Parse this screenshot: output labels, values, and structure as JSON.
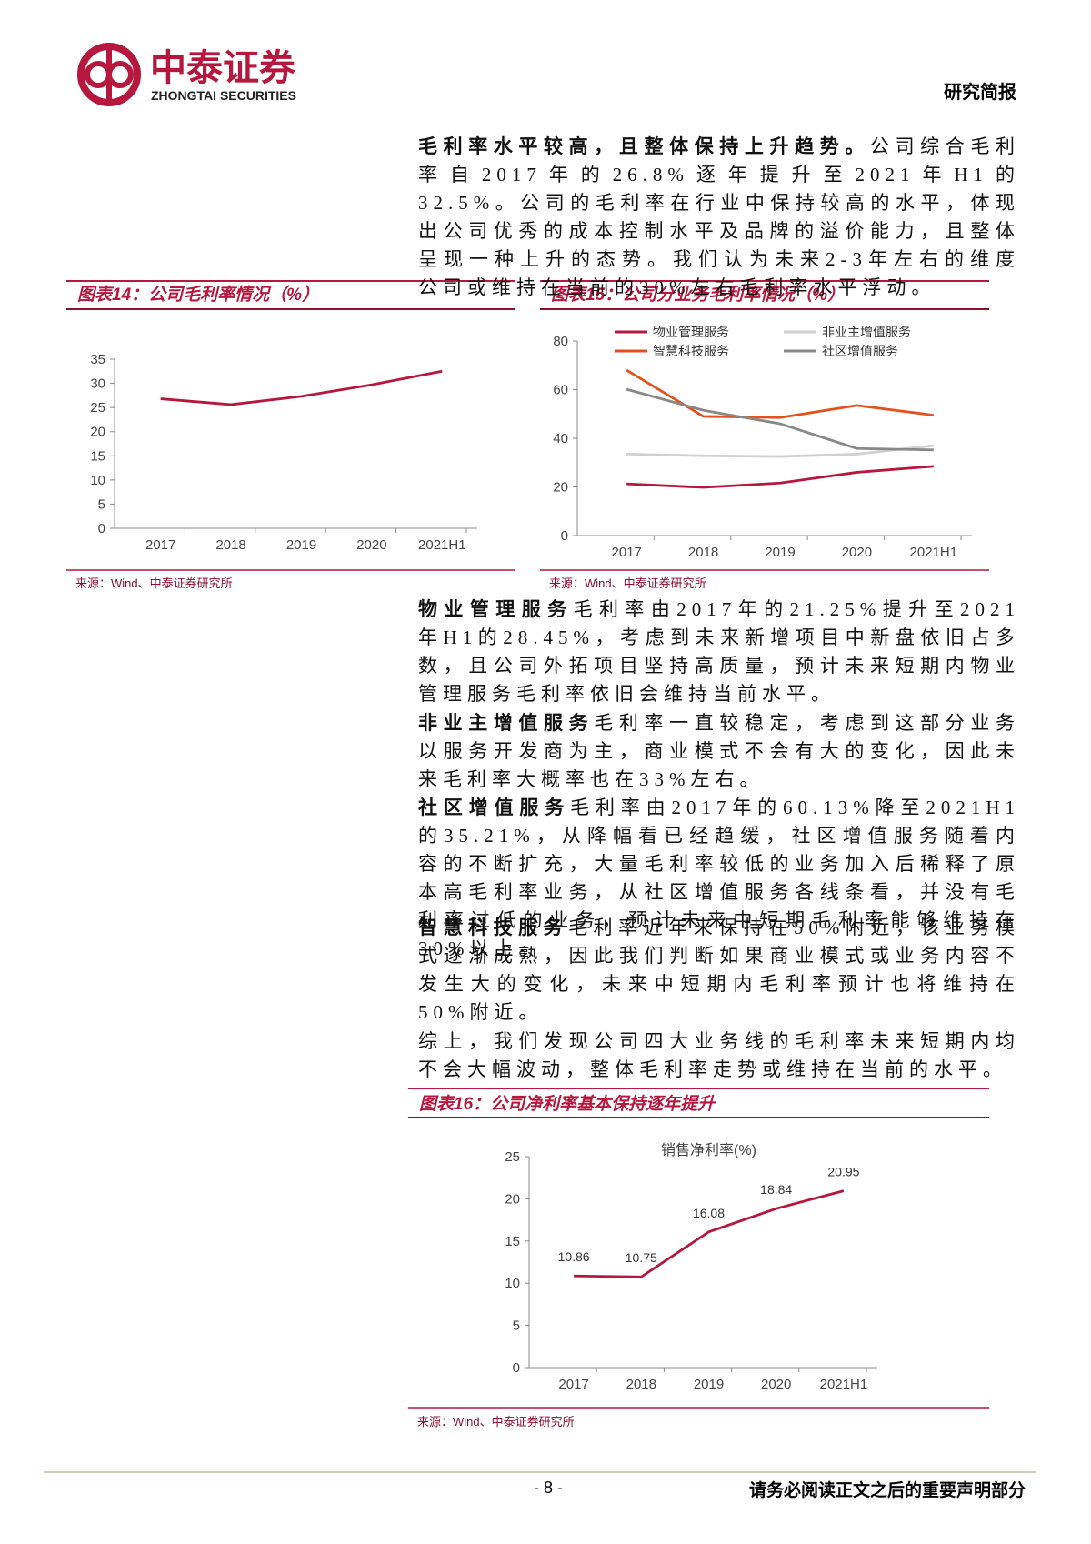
{
  "header": {
    "brand": "中泰证券",
    "brand_en": "ZHONGTAI SECURITIES",
    "report_type": "研究简报"
  },
  "paragraphs": [
    {
      "lead": "毛利率水平较高，且整体保持上升趋势。",
      "text": "公司综合毛利率自2017年的26.8%逐年提升至2021年H1的32.5%。公司的毛利率在行业中保持较高的水平，体现出公司优秀的成本控制水平及品牌的溢价能力，且整体呈现一种上升的态势。我们认为未来2-3年左右的维度公司或维持在当前的30%左右毛利率水平浮动。"
    },
    {
      "lead": "物业管理服务",
      "text": "毛利率由2017年的21.25%提升至2021年H1的28.45%，考虑到未来新增项目中新盘依旧占多数，且公司外拓项目坚持高质量，预计未来短期内物业管理服务毛利率依旧会维持当前水平。"
    },
    {
      "lead": "非业主增值服务",
      "text": "毛利率一直较稳定，考虑到这部分业务以服务开发商为主，商业模式不会有大的变化，因此未来毛利率大概率也在33%左右。"
    },
    {
      "lead": "社区增值服务",
      "text": "毛利率由2017年的60.13%降至2021H1的35.21%，从降幅看已经趋缓，社区增值服务随着内容的不断扩充，大量毛利率较低的业务加入后稀释了原本高毛利率业务，从社区增值服务各线条看，并没有毛利率过低的业务，预计未来中短期毛利率能够维持在30%以上。"
    },
    {
      "lead": "智慧科技服务",
      "text": "毛利率近年来保持在50%附近，该业务模式逐渐成熟，因此我们判断如果商业模式或业务内容不发生大的变化，未来中短期内毛利率预计也将维持在50%附近。"
    },
    {
      "text": "综上，我们发现公司四大业务线的毛利率未来短期内均不会大幅波动，整体毛利率走势或维持在当前的水平。"
    }
  ],
  "figures": [
    {
      "title": "图表14：公司毛利率情况（%）",
      "source": "来源：Wind、中泰证券研究所"
    },
    {
      "title": "图表15：公司分业务毛利率情况（%）",
      "source": "来源：Wind、中泰证券研究所"
    },
    {
      "title": "图表16：公司净利率基本保持逐年提升",
      "source": "来源：Wind、中泰证券研究所"
    }
  ],
  "chart_data": [
    {
      "type": "line",
      "categories": [
        "2017",
        "2018",
        "2019",
        "2020",
        "2021H1"
      ],
      "values": [
        26.8,
        25.6,
        27.3,
        29.7,
        32.5
      ],
      "color": "#b5173e",
      "ylim": [
        0,
        35
      ],
      "yticks": [
        0,
        5,
        10,
        15,
        20,
        25,
        30,
        35
      ]
    },
    {
      "type": "line",
      "categories": [
        "2017",
        "2018",
        "2019",
        "2020",
        "2021H1"
      ],
      "series": [
        {
          "name": "物业管理服务",
          "color": "#b5173e",
          "values": [
            21.25,
            19.8,
            21.6,
            26.0,
            28.45
          ]
        },
        {
          "name": "非业主增值服务",
          "color": "#d0d0d0",
          "values": [
            33.5,
            32.8,
            32.5,
            33.5,
            37.0
          ]
        },
        {
          "name": "智慧科技服务",
          "color": "#e0531f",
          "values": [
            68.0,
            49.0,
            48.5,
            53.5,
            49.5
          ]
        },
        {
          "name": "社区增值服务",
          "color": "#888888",
          "values": [
            60.13,
            51.5,
            46.0,
            35.8,
            35.21
          ]
        }
      ],
      "ylim": [
        0,
        80
      ],
      "yticks": [
        0,
        20,
        40,
        60,
        80
      ],
      "legend": "top"
    },
    {
      "type": "line",
      "title": "销售净利率(%)",
      "categories": [
        "2017",
        "2018",
        "2019",
        "2020",
        "2021H1"
      ],
      "values": [
        10.86,
        10.75,
        16.08,
        18.84,
        20.95
      ],
      "color": "#b5173e",
      "ylim": [
        0,
        25
      ],
      "yticks": [
        0,
        5,
        10,
        15,
        20,
        25
      ],
      "data_labels": true
    }
  ],
  "footer": {
    "page": "- 8 -",
    "notice": "请务必阅读正文之后的重要声明部分"
  }
}
